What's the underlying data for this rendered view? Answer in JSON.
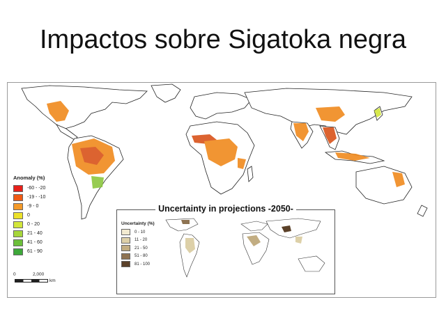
{
  "slide": {
    "title": "Impactos sobre Sigatoka negra"
  },
  "legend": {
    "title": "Anomaly (%)",
    "items": [
      {
        "label": "-60 - -20",
        "color": "#e8201a"
      },
      {
        "label": "-19 - -10",
        "color": "#f05a14"
      },
      {
        "label": "-9 - 0",
        "color": "#f49a2a"
      },
      {
        "label": "0",
        "color": "#ece12a"
      },
      {
        "label": "0 - 20",
        "color": "#d2e63a"
      },
      {
        "label": "21 - 40",
        "color": "#a6d63a"
      },
      {
        "label": "41 - 60",
        "color": "#6cbf3a"
      },
      {
        "label": "61 - 90",
        "color": "#3ea83a"
      }
    ]
  },
  "scalebar": {
    "zero": "0",
    "distance": "2,000",
    "unit": "km"
  },
  "inset": {
    "title": "Uncertainty in projections -2050-",
    "legend_title": "Uncertainty (%)",
    "items": [
      {
        "label": "0 - 10",
        "color": "#f2ead0"
      },
      {
        "label": "11 - 20",
        "color": "#ddd0a8"
      },
      {
        "label": "21 - 50",
        "color": "#c2ad82"
      },
      {
        "label": "51 - 80",
        "color": "#8e7352"
      },
      {
        "label": "81 - 100",
        "color": "#5b4129"
      }
    ]
  },
  "colors": {
    "land": "#ffffff",
    "border": "#222222",
    "primary": "#f08a1e",
    "dark": "#d9531a",
    "green": "#8cc63f"
  }
}
